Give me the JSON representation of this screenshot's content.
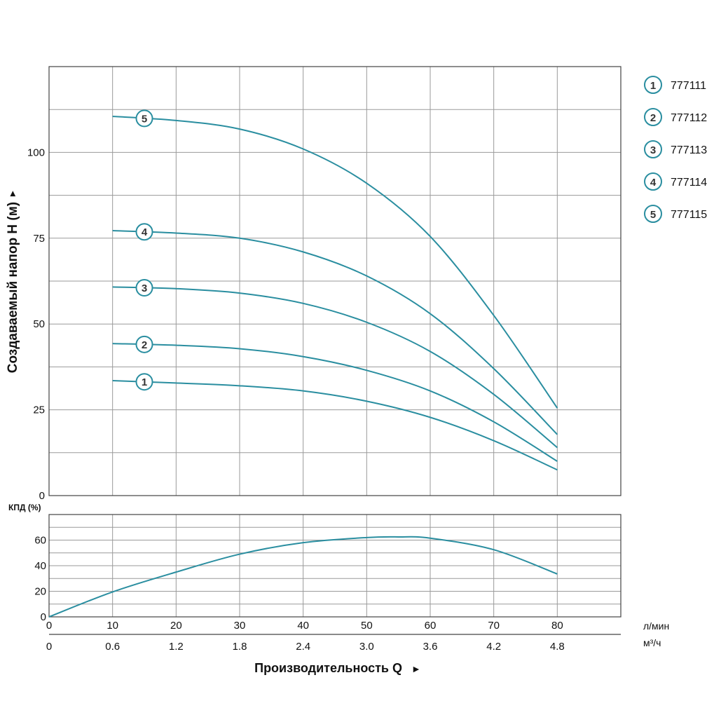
{
  "chart_data": [
    {
      "type": "line",
      "ylabel": "Создаваемый напор Н (м)",
      "ylabel_arrow": "►",
      "xlabel": "Производительность Q",
      "xlabel_arrow": "►",
      "x_unit_primary": "л/мин",
      "x_unit_secondary": "м³/ч",
      "xlim": [
        0,
        90
      ],
      "ylim": [
        0,
        125
      ],
      "grid": true,
      "x_ticks": [
        0,
        10,
        20,
        30,
        40,
        50,
        60,
        70,
        80
      ],
      "x_ticks_secondary": [
        "0",
        "0.6",
        "1.2",
        "1.8",
        "2.4",
        "3.0",
        "3.6",
        "4.2",
        "4.8"
      ],
      "y_ticks": [
        0,
        25,
        50,
        75,
        100
      ],
      "legend_position": "right",
      "line_color": "#2a8ea0",
      "series": [
        {
          "name": "777111",
          "badge": "1",
          "x": [
            10,
            20,
            30,
            40,
            50,
            60,
            70,
            80
          ],
          "y": [
            33.5,
            32.8,
            32.0,
            30.5,
            27.5,
            22.8,
            16.0,
            7.5
          ]
        },
        {
          "name": "777112",
          "badge": "2",
          "x": [
            10,
            20,
            30,
            40,
            50,
            60,
            70,
            80
          ],
          "y": [
            44.3,
            43.8,
            42.8,
            40.5,
            36.5,
            30.5,
            21.5,
            10.0
          ]
        },
        {
          "name": "777113",
          "badge": "3",
          "x": [
            10,
            20,
            30,
            40,
            50,
            60,
            70,
            80
          ],
          "y": [
            60.8,
            60.3,
            59.0,
            56.0,
            50.5,
            42.0,
            29.5,
            14.0
          ]
        },
        {
          "name": "777114",
          "badge": "4",
          "x": [
            10,
            20,
            30,
            40,
            50,
            60,
            70,
            80
          ],
          "y": [
            77.2,
            76.5,
            75.0,
            71.0,
            64.0,
            53.0,
            37.0,
            17.8
          ]
        },
        {
          "name": "777115",
          "badge": "5",
          "x": [
            10,
            20,
            30,
            40,
            50,
            60,
            70,
            80
          ],
          "y": [
            110.5,
            109.3,
            106.8,
            101.0,
            91.0,
            75.5,
            52.5,
            25.5
          ]
        }
      ]
    },
    {
      "type": "line",
      "ylabel": "КПД (%)",
      "xlim": [
        0,
        90
      ],
      "ylim": [
        0,
        80
      ],
      "grid": true,
      "y_ticks": [
        0,
        20,
        40,
        60
      ],
      "series": [
        {
          "x": [
            0,
            10,
            20,
            30,
            40,
            50,
            55,
            60,
            70,
            80
          ],
          "y": [
            0,
            19.5,
            35,
            49,
            58,
            62,
            62.5,
            61.5,
            52.5,
            33.5
          ]
        }
      ]
    }
  ]
}
